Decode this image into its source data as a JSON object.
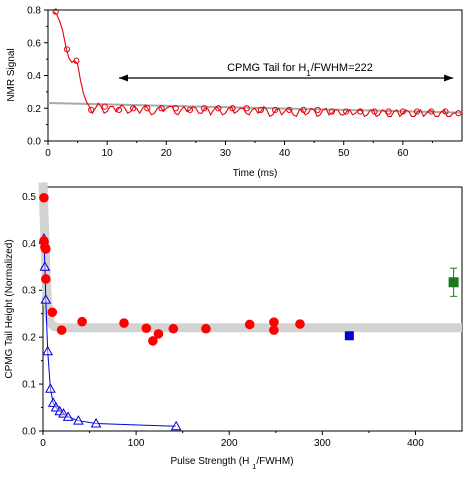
{
  "chart_data": [
    {
      "type": "line",
      "xlabel": "Time (ms)",
      "ylabel": "NMR Signal",
      "xlim": [
        0,
        70
      ],
      "ylim": [
        0,
        0.8
      ],
      "xticks": [
        0,
        10,
        20,
        30,
        40,
        50,
        60
      ],
      "yticks": [
        0.0,
        0.2,
        0.4,
        0.6,
        0.8
      ],
      "annotation": {
        "prefix": "CPMG Tail for H",
        "sub": "1",
        "suffix": "/FWHM=222",
        "arrow_from": 12,
        "arrow_to": 68.5
      },
      "colors": {
        "signal": "#e8000b",
        "fit": "#a9a9a9"
      },
      "fit_line": {
        "x": [
          0,
          70
        ],
        "y": [
          0.232,
          0.173
        ]
      },
      "signal": {
        "x": [
          1,
          1.5,
          2,
          2.5,
          3,
          3.5,
          4,
          4.5,
          5,
          5.5,
          6,
          6.5,
          7,
          7.5,
          8,
          8.5,
          9,
          9.5,
          10,
          10.5,
          11,
          11.5,
          12,
          12.5,
          13,
          13.5,
          14,
          14.5,
          15,
          15.5,
          16,
          16.5,
          17,
          17.5,
          18,
          18.5,
          19,
          19.5,
          20,
          20.5,
          21,
          21.5,
          22,
          22.5,
          23,
          23.5,
          24,
          24.5,
          25,
          25.5,
          26,
          26.5,
          27,
          27.5,
          28,
          28.5,
          29,
          29.5,
          30,
          30.5,
          31,
          31.5,
          32,
          32.5,
          33,
          33.5,
          34,
          34.5,
          35,
          35.5,
          36,
          36.5,
          37,
          37.5,
          38,
          38.5,
          39,
          39.5,
          40,
          40.5,
          41,
          41.5,
          42,
          42.5,
          43,
          43.5,
          44,
          44.5,
          45,
          45.5,
          46,
          46.5,
          47,
          47.5,
          48,
          48.5,
          49,
          49.5,
          50,
          50.5,
          51,
          51.5,
          52,
          52.5,
          53,
          53.5,
          54,
          54.5,
          55,
          55.5,
          56,
          56.5,
          57,
          57.5,
          58,
          58.5,
          59,
          59.5,
          60,
          60.5,
          61,
          61.5,
          62,
          62.5,
          63,
          63.5,
          64,
          64.5,
          65,
          65.5,
          66,
          66.5,
          67,
          67.5,
          68,
          68.5,
          69
        ],
        "y": [
          0.79,
          0.77,
          0.73,
          0.67,
          0.58,
          0.51,
          0.48,
          0.49,
          0.47,
          0.37,
          0.29,
          0.24,
          0.21,
          0.17,
          0.2,
          0.23,
          0.21,
          0.17,
          0.18,
          0.21,
          0.21,
          0.18,
          0.2,
          0.22,
          0.2,
          0.17,
          0.18,
          0.21,
          0.2,
          0.17,
          0.2,
          0.22,
          0.19,
          0.16,
          0.17,
          0.2,
          0.21,
          0.18,
          0.2,
          0.21,
          0.21,
          0.17,
          0.16,
          0.19,
          0.21,
          0.18,
          0.19,
          0.21,
          0.2,
          0.17,
          0.17,
          0.2,
          0.2,
          0.16,
          0.19,
          0.21,
          0.19,
          0.16,
          0.17,
          0.2,
          0.21,
          0.17,
          0.18,
          0.2,
          0.2,
          0.17,
          0.16,
          0.19,
          0.2,
          0.17,
          0.18,
          0.21,
          0.19,
          0.15,
          0.16,
          0.19,
          0.2,
          0.16,
          0.18,
          0.2,
          0.19,
          0.16,
          0.15,
          0.19,
          0.19,
          0.16,
          0.17,
          0.2,
          0.19,
          0.15,
          0.16,
          0.19,
          0.2,
          0.16,
          0.17,
          0.19,
          0.19,
          0.16,
          0.16,
          0.18,
          0.19,
          0.16,
          0.17,
          0.19,
          0.19,
          0.15,
          0.16,
          0.19,
          0.19,
          0.15,
          0.16,
          0.19,
          0.18,
          0.15,
          0.15,
          0.18,
          0.19,
          0.15,
          0.17,
          0.19,
          0.18,
          0.15,
          0.15,
          0.18,
          0.19,
          0.15,
          0.17,
          0.19,
          0.18,
          0.15,
          0.15,
          0.18,
          0.19,
          0.15,
          0.15,
          0.17,
          0.17
        ]
      },
      "markers": {
        "x": [
          1.3,
          3.2,
          4.8,
          7.3,
          9.6,
          12.0,
          14.4,
          16.8,
          19.2,
          21.6,
          24.0,
          26.4,
          28.8,
          31.2,
          33.6,
          36.0,
          38.4,
          40.8,
          43.2,
          45.6,
          48.0,
          50.4,
          52.8,
          55.2,
          57.6,
          60.0,
          62.4,
          64.8,
          67.2,
          69.4
        ],
        "y": [
          0.79,
          0.56,
          0.49,
          0.19,
          0.21,
          0.19,
          0.2,
          0.2,
          0.2,
          0.2,
          0.19,
          0.2,
          0.2,
          0.2,
          0.2,
          0.19,
          0.19,
          0.19,
          0.19,
          0.19,
          0.18,
          0.18,
          0.18,
          0.18,
          0.18,
          0.18,
          0.18,
          0.18,
          0.18,
          0.17
        ]
      }
    },
    {
      "type": "scatter",
      "xlabel": "Pulse Strength (H₁/FWHM)",
      "ylabel": "CPMG Tail Height (Normalized)",
      "xlim": [
        0,
        450
      ],
      "ylim": [
        0,
        0.52
      ],
      "xticks": [
        0,
        100,
        200,
        300,
        400
      ],
      "yticks": [
        0.0,
        0.1,
        0.2,
        0.3,
        0.4,
        0.5
      ],
      "colors": {
        "red": "#ff0000",
        "blue": "#0000d8",
        "green": "#1a7a1a",
        "gray_curve": "#d3d3d3"
      },
      "gray_curve": {
        "x": [
          0,
          1,
          2,
          3,
          4,
          5,
          6,
          8,
          10,
          12,
          15,
          20,
          30,
          50,
          100,
          200,
          300,
          400,
          450
        ],
        "y": [
          0.53,
          0.47,
          0.41,
          0.35,
          0.3,
          0.27,
          0.25,
          0.232,
          0.226,
          0.222,
          0.221,
          0.22,
          0.22,
          0.22,
          0.22,
          0.22,
          0.22,
          0.22,
          0.22
        ]
      },
      "series": [
        {
          "marker": "circle",
          "x": [
            1,
            1,
            2,
            3,
            3,
            10,
            20,
            42,
            87,
            111,
            118,
            124,
            140,
            175,
            222,
            248,
            248,
            276
          ],
          "y": [
            0.497,
            0.405,
            0.392,
            0.388,
            0.324,
            0.253,
            0.215,
            0.233,
            0.23,
            0.219,
            0.192,
            0.207,
            0.218,
            0.218,
            0.227,
            0.232,
            0.215,
            0.228
          ]
        },
        {
          "marker": "triangle",
          "x": [
            1,
            2,
            3,
            5,
            8,
            11,
            14,
            18,
            22,
            27,
            38,
            57,
            143
          ],
          "y": [
            0.41,
            0.35,
            0.28,
            0.17,
            0.09,
            0.06,
            0.05,
            0.042,
            0.037,
            0.03,
            0.022,
            0.016,
            0.01
          ]
        },
        {
          "marker": "square",
          "x": [
            329
          ],
          "y": [
            0.203
          ]
        },
        {
          "marker": "square-errorbar",
          "x": [
            441
          ],
          "y": [
            0.317
          ],
          "err": [
            0.03
          ]
        }
      ]
    }
  ]
}
